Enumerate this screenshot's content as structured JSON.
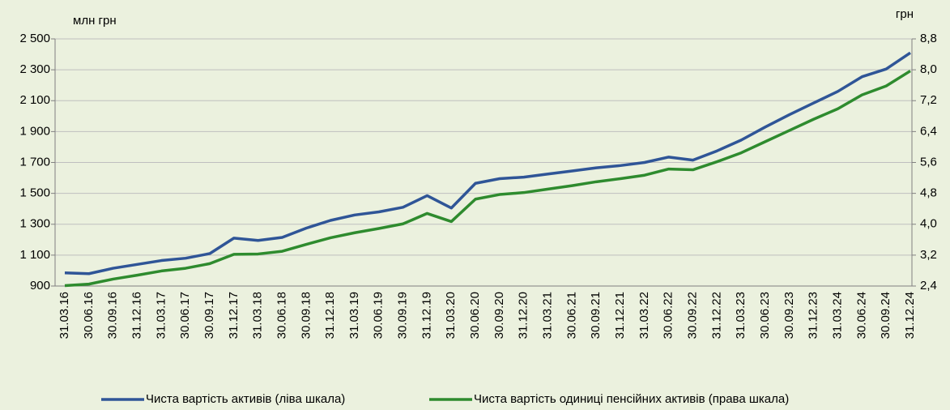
{
  "chart_data": {
    "type": "line",
    "y_label": "млн грн",
    "y2_label": "грн",
    "categories": [
      "31.03.16",
      "30.06.16",
      "30.09.16",
      "31.12.16",
      "31.03.17",
      "30.06.17",
      "30.09.17",
      "31.12.17",
      "31.03.18",
      "30.06.18",
      "30.09.18",
      "31.12.18",
      "31.03.19",
      "30.06.19",
      "30.09.19",
      "31.12.19",
      "31.03.20",
      "30.06.20",
      "30.09.20",
      "31.12.20",
      "31.03.21",
      "30.06.21",
      "30.09.21",
      "31.12.21",
      "31.03.22",
      "30.06.22",
      "30.09.22",
      "31.12.22",
      "31.03.23",
      "30.06.23",
      "30.09.23",
      "31.12.23",
      "31.03.24",
      "30.06.24",
      "30.09.24",
      "31.12.24"
    ],
    "series": [
      {
        "name": "Чиста вартість активів (ліва шкала)",
        "color": "#2f5597",
        "axis": "y",
        "values": [
          985,
          980,
          1015,
          1040,
          1065,
          1080,
          1110,
          1210,
          1195,
          1215,
          1275,
          1325,
          1360,
          1380,
          1410,
          1485,
          1405,
          1565,
          1595,
          1605,
          1625,
          1645,
          1665,
          1680,
          1700,
          1735,
          1715,
          1775,
          1845,
          1930,
          2010,
          2085,
          2160,
          2255,
          2305,
          2410
        ]
      },
      {
        "name": "Чиста вартість одиниці пенсійних активів (права шкала)",
        "color": "#2e8b2e",
        "axis": "y2",
        "values": [
          2.41,
          2.45,
          2.58,
          2.68,
          2.79,
          2.86,
          2.98,
          3.22,
          3.23,
          3.3,
          3.48,
          3.65,
          3.78,
          3.89,
          4.01,
          4.28,
          4.07,
          4.65,
          4.77,
          4.82,
          4.91,
          5.0,
          5.1,
          5.18,
          5.27,
          5.43,
          5.41,
          5.62,
          5.85,
          6.14,
          6.43,
          6.72,
          6.99,
          7.35,
          7.58,
          7.97
        ]
      }
    ],
    "ylim": [
      900,
      2500
    ],
    "yticks": [
      900,
      {
        "value": 1100,
        "label": "1 100"
      },
      {
        "value": 1300,
        "label": "1 300"
      },
      {
        "value": 1500,
        "label": "1 500"
      },
      {
        "value": 1700,
        "label": "1 700"
      },
      {
        "value": 1900,
        "label": "1 900"
      },
      {
        "value": 2100,
        "label": "2 100"
      },
      {
        "value": 2300,
        "label": "2 300"
      },
      {
        "value": 2500,
        "label": "2 500"
      }
    ],
    "y2lim": [
      2.4,
      8.8
    ],
    "y2ticks": [
      {
        "value": 2.4,
        "label": "2,4"
      },
      {
        "value": 3.2,
        "label": "3,2"
      },
      {
        "value": 4.0,
        "label": "4,0"
      },
      {
        "value": 4.8,
        "label": "4,8"
      },
      {
        "value": 5.6,
        "label": "5,6"
      },
      {
        "value": 6.4,
        "label": "6,4"
      },
      {
        "value": 7.2,
        "label": "7,2"
      },
      {
        "value": 8.0,
        "label": "8,0"
      },
      {
        "value": 8.8,
        "label": "8,8"
      }
    ],
    "grid": true,
    "legend": "bottom"
  }
}
